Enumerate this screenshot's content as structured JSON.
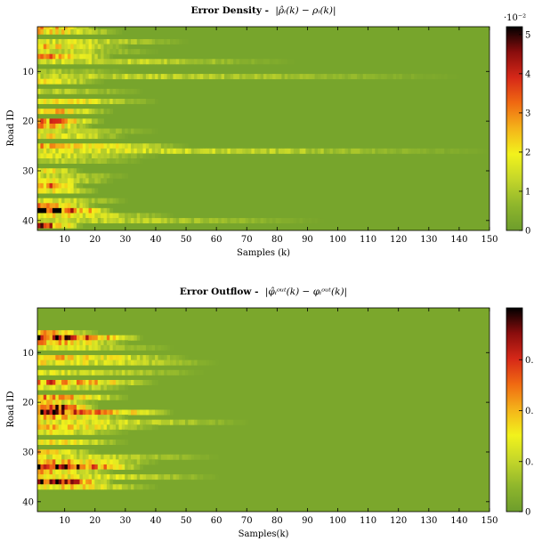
{
  "chart_data": [
    {
      "type": "heatmap",
      "title_bold": "Error Density -",
      "title_math": "|ρ̂ᵢ(k) − ρᵢ(k)|",
      "xlabel": "Samples (k)",
      "ylabel": "Road ID",
      "xlim": [
        1,
        150
      ],
      "ylim": [
        1,
        40
      ],
      "y_inverted": true,
      "x_ticks": [
        10,
        20,
        30,
        40,
        50,
        60,
        70,
        80,
        90,
        100,
        110,
        120,
        130,
        140,
        150
      ],
      "y_ticks": [
        10,
        20,
        30,
        40
      ],
      "colorbar": {
        "min": 0,
        "max": 5.2,
        "ticks": [
          0,
          1,
          2,
          3,
          4,
          5
        ],
        "exponent_label": "·10⁻²",
        "colormap": [
          "#6d9d2c",
          "#8fb62c",
          "#c4d62a",
          "#f2f21c",
          "#f4b41a",
          "#f06a12",
          "#d62818",
          "#8a0d0d",
          "#000000"
        ]
      },
      "background_value": 0.2,
      "streaks": [
        {
          "road": 1,
          "value": 2.6,
          "length": 20
        },
        {
          "road": 1,
          "value": 5.0,
          "length": 5
        },
        {
          "road": 2,
          "value": 2.2,
          "length": 28
        },
        {
          "road": 4,
          "value": 1.6,
          "length": 50
        },
        {
          "road": 5,
          "value": 2.3,
          "length": 30
        },
        {
          "road": 6,
          "value": 1.4,
          "length": 40
        },
        {
          "road": 7,
          "value": 2.8,
          "length": 25
        },
        {
          "road": 8,
          "value": 1.5,
          "length": 85
        },
        {
          "road": 10,
          "value": 1.0,
          "length": 30
        },
        {
          "road": 11,
          "value": 1.3,
          "length": 140
        },
        {
          "road": 12,
          "value": 1.8,
          "length": 22
        },
        {
          "road": 14,
          "value": 1.2,
          "length": 35
        },
        {
          "road": 16,
          "value": 2.0,
          "length": 40
        },
        {
          "road": 18,
          "value": 2.5,
          "length": 25
        },
        {
          "road": 20,
          "value": 3.2,
          "length": 22
        },
        {
          "road": 21,
          "value": 2.6,
          "length": 18
        },
        {
          "road": 22,
          "value": 1.3,
          "length": 40
        },
        {
          "road": 23,
          "value": 2.0,
          "length": 30
        },
        {
          "road": 25,
          "value": 2.5,
          "length": 50
        },
        {
          "road": 26,
          "value": 1.6,
          "length": 150
        },
        {
          "road": 27,
          "value": 1.5,
          "length": 40
        },
        {
          "road": 28,
          "value": 1.2,
          "length": 35
        },
        {
          "road": 30,
          "value": 2.0,
          "length": 15
        },
        {
          "road": 31,
          "value": 1.4,
          "length": 30
        },
        {
          "road": 32,
          "value": 1.8,
          "length": 25
        },
        {
          "road": 33,
          "value": 3.2,
          "length": 15
        },
        {
          "road": 34,
          "value": 2.3,
          "length": 20
        },
        {
          "road": 36,
          "value": 1.6,
          "length": 30
        },
        {
          "road": 37,
          "value": 2.5,
          "length": 20
        },
        {
          "road": 38,
          "value": 4.5,
          "length": 25
        },
        {
          "road": 39,
          "value": 2.0,
          "length": 45
        },
        {
          "road": 40,
          "value": 1.3,
          "length": 95
        },
        {
          "road": 41,
          "value": 4.0,
          "length": 15
        }
      ]
    },
    {
      "type": "heatmap",
      "title_bold": "Error Outflow -",
      "title_math": "|φ̂ᵢᵒᵘᵗ(k) − φᵢᵒᵘᵗ(k)|",
      "xlabel": "Samples(k)",
      "ylabel": "Road ID",
      "xlim": [
        1,
        150
      ],
      "ylim": [
        1,
        40
      ],
      "y_inverted": true,
      "x_ticks": [
        10,
        20,
        30,
        40,
        50,
        60,
        70,
        80,
        90,
        100,
        110,
        120,
        130,
        140,
        150
      ],
      "y_ticks": [
        10,
        20,
        30,
        40
      ],
      "colorbar": {
        "min": 0,
        "max": 1.0,
        "ticks": [
          0
        ],
        "partial_tick_labels": [
          "0.",
          "0.",
          "0."
        ],
        "colormap": [
          "#6d9d2c",
          "#8fb62c",
          "#c4d62a",
          "#f2f21c",
          "#f4b41a",
          "#f06a12",
          "#d62818",
          "#8a0d0d",
          "#000000"
        ]
      },
      "background_value": 0.05,
      "streaks": [
        {
          "road": 6,
          "value": 0.5,
          "length": 20
        },
        {
          "road": 7,
          "value": 0.85,
          "length": 35
        },
        {
          "road": 8,
          "value": 0.5,
          "length": 30
        },
        {
          "road": 9,
          "value": 0.3,
          "length": 45
        },
        {
          "road": 11,
          "value": 0.45,
          "length": 50
        },
        {
          "road": 12,
          "value": 0.35,
          "length": 60
        },
        {
          "road": 14,
          "value": 0.3,
          "length": 55
        },
        {
          "road": 16,
          "value": 0.6,
          "length": 40
        },
        {
          "road": 17,
          "value": 0.35,
          "length": 30
        },
        {
          "road": 19,
          "value": 0.55,
          "length": 30
        },
        {
          "road": 20,
          "value": 0.4,
          "length": 20
        },
        {
          "road": 21,
          "value": 0.9,
          "length": 20
        },
        {
          "road": 22,
          "value": 0.75,
          "length": 45
        },
        {
          "road": 23,
          "value": 0.5,
          "length": 30
        },
        {
          "road": 24,
          "value": 0.35,
          "length": 70
        },
        {
          "road": 25,
          "value": 0.45,
          "length": 40
        },
        {
          "road": 26,
          "value": 0.35,
          "length": 30
        },
        {
          "road": 28,
          "value": 0.4,
          "length": 30
        },
        {
          "road": 30,
          "value": 0.4,
          "length": 20
        },
        {
          "road": 31,
          "value": 0.3,
          "length": 60
        },
        {
          "road": 32,
          "value": 0.5,
          "length": 40
        },
        {
          "road": 33,
          "value": 0.85,
          "length": 35
        },
        {
          "road": 34,
          "value": 0.5,
          "length": 25
        },
        {
          "road": 35,
          "value": 0.35,
          "length": 60
        },
        {
          "road": 36,
          "value": 0.9,
          "length": 25
        },
        {
          "road": 37,
          "value": 0.45,
          "length": 40
        }
      ]
    }
  ]
}
